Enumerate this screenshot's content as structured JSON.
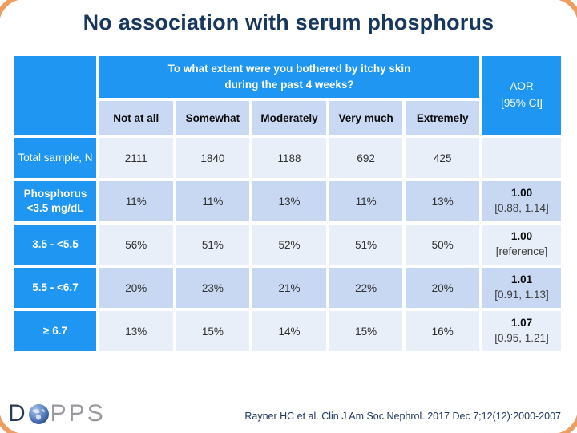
{
  "slide": {
    "title": "No association with serum phosphorus"
  },
  "table": {
    "question_line1": "To what extent were you bothered by itchy skin",
    "question_line2": "during the past 4 weeks?",
    "aor_header": [
      "AOR",
      "[95% CI]"
    ],
    "columns": [
      "Not at all",
      "Somewhat",
      "Moderately",
      "Very much",
      "Extremely"
    ],
    "rows": [
      {
        "label": "Total sample, N",
        "bold_label": false,
        "values": [
          "2111",
          "1840",
          "1188",
          "692",
          "425"
        ],
        "aor": "",
        "ci": ""
      },
      {
        "label": "Phosphorus <3.5 mg/dL",
        "bold_label": true,
        "values": [
          "11%",
          "11%",
          "13%",
          "11%",
          "13%"
        ],
        "aor": "1.00",
        "ci": "[0.88, 1.14]"
      },
      {
        "label": "3.5 - <5.5",
        "bold_label": true,
        "values": [
          "56%",
          "51%",
          "52%",
          "51%",
          "50%"
        ],
        "aor": "1.00",
        "ci": "[reference]"
      },
      {
        "label": "5.5 - <6.7",
        "bold_label": true,
        "values": [
          "20%",
          "23%",
          "21%",
          "22%",
          "20%"
        ],
        "aor": "1.01",
        "ci": "[0.91, 1.13]"
      },
      {
        "label": "≥ 6.7",
        "bold_label": true,
        "values": [
          "13%",
          "15%",
          "14%",
          "15%",
          "16%"
        ],
        "aor": "1.07",
        "ci": "[0.95, 1.21]"
      }
    ]
  },
  "footer": {
    "logo_prefix": "D",
    "logo_suffix": "PPS",
    "citation": "Rayner HC et al. Clin J Am Soc Nephrol. 2017 Dec 7;12(12):2000-2007"
  },
  "colors": {
    "header_blue": "#1E96F2",
    "band_light": "#E9EFF9",
    "band_dark": "#C8D8F3",
    "title_navy": "#17375D",
    "citation_navy": "#1F3864",
    "corner_orange": "#ED9D5F"
  },
  "chart_data": {
    "type": "table",
    "title": "No association with serum phosphorus",
    "question": "To what extent were you bothered by itchy skin during the past 4 weeks?",
    "columns": [
      "",
      "Not at all",
      "Somewhat",
      "Moderately",
      "Very much",
      "Extremely",
      "AOR [95% CI]"
    ],
    "rows": [
      [
        "Total sample, N",
        "2111",
        "1840",
        "1188",
        "692",
        "425",
        ""
      ],
      [
        "Phosphorus <3.5 mg/dL",
        "11%",
        "11%",
        "13%",
        "11%",
        "13%",
        "1.00 [0.88, 1.14]"
      ],
      [
        "3.5 - <5.5",
        "56%",
        "51%",
        "52%",
        "51%",
        "50%",
        "1.00 [reference]"
      ],
      [
        "5.5 - <6.7",
        "20%",
        "23%",
        "21%",
        "22%",
        "20%",
        "1.01 [0.91, 1.13]"
      ],
      [
        "≥ 6.7",
        "13%",
        "15%",
        "14%",
        "15%",
        "16%",
        "1.07 [0.95, 1.21]"
      ]
    ],
    "source": "Rayner HC et al. Clin J Am Soc Nephrol. 2017 Dec 7;12(12):2000-2007"
  }
}
